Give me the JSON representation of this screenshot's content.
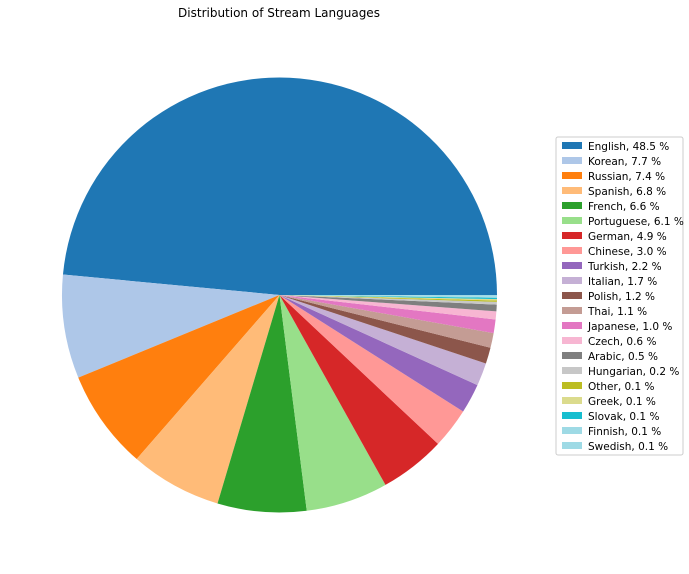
{
  "chart_data": {
    "type": "pie",
    "title": "Distribution of Stream Languages",
    "legend_placement": "right",
    "slice_order": "counterclockwise-from-east",
    "slices": [
      {
        "label": "English, 48.5 %",
        "category": "English",
        "value": 48.5,
        "color": "#1f77b4"
      },
      {
        "label": "Korean, 7.7 %",
        "category": "Korean",
        "value": 7.7,
        "color": "#aec7e8"
      },
      {
        "label": "Russian, 7.4 %",
        "category": "Russian",
        "value": 7.4,
        "color": "#ff7f0e"
      },
      {
        "label": "Spanish, 6.8 %",
        "category": "Spanish",
        "value": 6.8,
        "color": "#ffbb78"
      },
      {
        "label": "French, 6.6 %",
        "category": "French",
        "value": 6.6,
        "color": "#2ca02c"
      },
      {
        "label": "Portuguese, 6.1 %",
        "category": "Portuguese",
        "value": 6.1,
        "color": "#98df8a"
      },
      {
        "label": "German, 4.9 %",
        "category": "German",
        "value": 4.9,
        "color": "#d62728"
      },
      {
        "label": "Chinese, 3.0 %",
        "category": "Chinese",
        "value": 3.0,
        "color": "#ff9896"
      },
      {
        "label": "Turkish, 2.2 %",
        "category": "Turkish",
        "value": 2.2,
        "color": "#9467bd"
      },
      {
        "label": "Italian, 1.7 %",
        "category": "Italian",
        "value": 1.7,
        "color": "#c5b0d5"
      },
      {
        "label": "Polish, 1.2 %",
        "category": "Polish",
        "value": 1.2,
        "color": "#8c564b"
      },
      {
        "label": "Thai, 1.1 %",
        "category": "Thai",
        "value": 1.1,
        "color": "#c49c94"
      },
      {
        "label": "Japanese, 1.0 %",
        "category": "Japanese",
        "value": 1.0,
        "color": "#e377c2"
      },
      {
        "label": "Czech, 0.6 %",
        "category": "Czech",
        "value": 0.6,
        "color": "#f7b6d2"
      },
      {
        "label": "Arabic, 0.5 %",
        "category": "Arabic",
        "value": 0.5,
        "color": "#7f7f7f"
      },
      {
        "label": "Hungarian, 0.2 %",
        "category": "Hungarian",
        "value": 0.2,
        "color": "#c7c7c7"
      },
      {
        "label": "Other, 0.1 %",
        "category": "Other",
        "value": 0.1,
        "color": "#bcbd22"
      },
      {
        "label": "Greek, 0.1 %",
        "category": "Greek",
        "value": 0.1,
        "color": "#dbdb8d"
      },
      {
        "label": "Slovak, 0.1 %",
        "category": "Slovak",
        "value": 0.1,
        "color": "#17becf"
      },
      {
        "label": "Finnish, 0.1 %",
        "category": "Finnish",
        "value": 0.1,
        "color": "#9edae5"
      },
      {
        "label": "Swedish, 0.1 %",
        "category": "Swedish",
        "value": 0.1,
        "color": "#9edae5"
      }
    ]
  }
}
